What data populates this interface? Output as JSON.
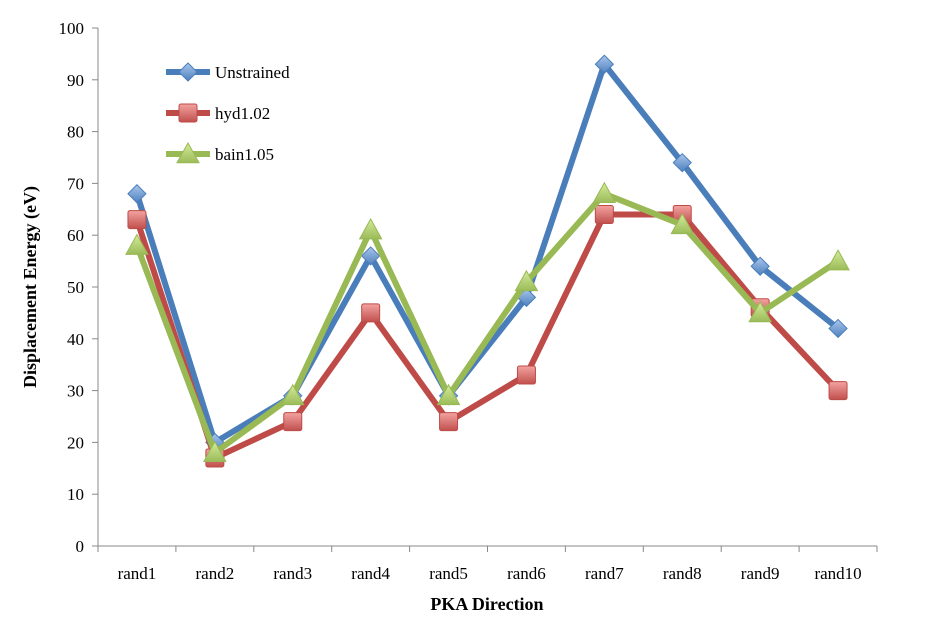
{
  "chart_data": {
    "type": "line",
    "xlabel": "PKA Direction",
    "ylabel": "Displacement Energy (eV)",
    "ylim": [
      0,
      100
    ],
    "yticks": [
      0,
      10,
      20,
      30,
      40,
      50,
      60,
      70,
      80,
      90,
      100
    ],
    "categories": [
      "rand1",
      "rand2",
      "rand3",
      "rand4",
      "rand5",
      "rand6",
      "rand7",
      "rand8",
      "rand9",
      "rand10"
    ],
    "grid": false,
    "legend_position": "top-left",
    "series": [
      {
        "name": "Unstrained",
        "color": "#4a7ebb",
        "marker": "diamond",
        "values": [
          68,
          20,
          29,
          56,
          29,
          48,
          93,
          74,
          54,
          42
        ]
      },
      {
        "name": "hyd1.02",
        "color": "#be4b48",
        "marker": "square",
        "values": [
          63,
          17,
          24,
          45,
          24,
          33,
          64,
          64,
          46,
          30
        ]
      },
      {
        "name": "bain1.05",
        "color": "#98b954",
        "marker": "triangle",
        "values": [
          58,
          18,
          29,
          61,
          29,
          51,
          68,
          62,
          45,
          55
        ]
      }
    ]
  }
}
